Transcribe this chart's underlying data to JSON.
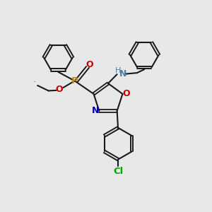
{
  "bg_color": "#e8e8e8",
  "bond_color": "#1a1a1a",
  "N_color": "#0000cc",
  "O_color": "#cc0000",
  "P_color": "#cc8800",
  "Cl_color": "#00aa00",
  "NH_color": "#4a7fa0",
  "H_color": "#4a7fa0",
  "figsize": [
    3.0,
    3.0
  ],
  "dpi": 100,
  "xlim": [
    0,
    10
  ],
  "ylim": [
    0,
    10
  ]
}
